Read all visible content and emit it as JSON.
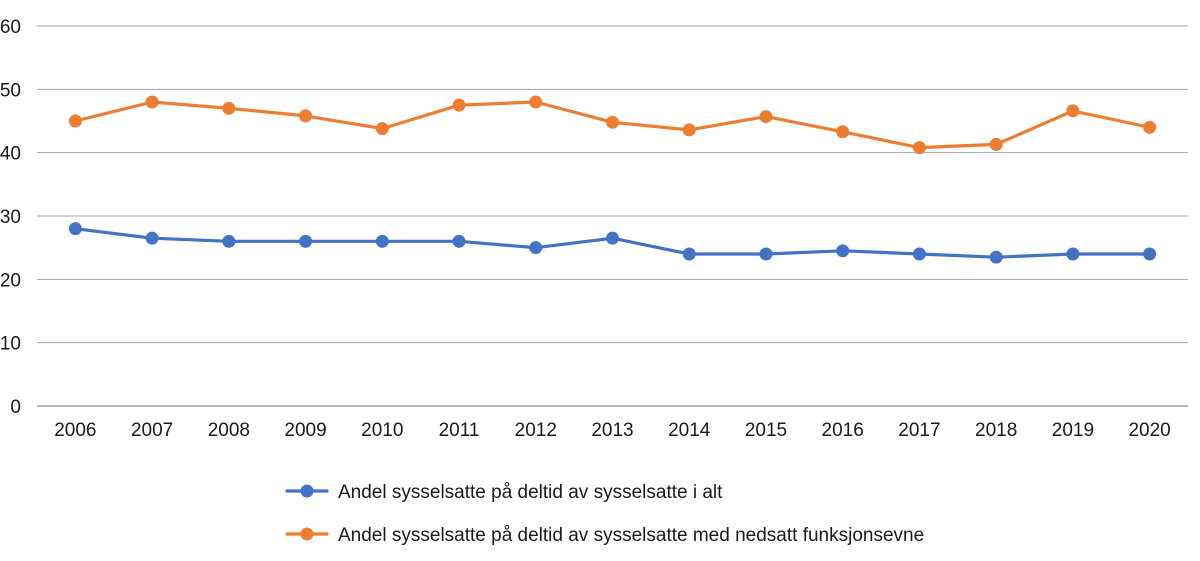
{
  "chart_data": {
    "type": "line",
    "title": "",
    "xlabel": "",
    "ylabel": "",
    "x": [
      "2006",
      "2007",
      "2008",
      "2009",
      "2010",
      "2011",
      "2012",
      "2013",
      "2014",
      "2015",
      "2016",
      "2017",
      "2018",
      "2019",
      "2020"
    ],
    "ylim": [
      0,
      60
    ],
    "yticks": [
      0,
      10,
      20,
      30,
      40,
      50,
      60
    ],
    "grid": "horizontal",
    "legend_position": "bottom",
    "series": [
      {
        "name": "Andel sysselsatte på deltid av sysselsatte i alt",
        "color": "#4472c4",
        "values": [
          28,
          26.5,
          26,
          26,
          26,
          26,
          25,
          26.5,
          24,
          24,
          24.5,
          24,
          23.5,
          24,
          24
        ]
      },
      {
        "name": "Andel sysselsatte på deltid av sysselsatte med nedsatt funksjonsevne",
        "color": "#ed7d31",
        "values": [
          45,
          48,
          47,
          45.8,
          43.8,
          47.5,
          48,
          44.8,
          43.6,
          45.7,
          43.3,
          40.8,
          41.3,
          46.6,
          44
        ]
      }
    ]
  }
}
